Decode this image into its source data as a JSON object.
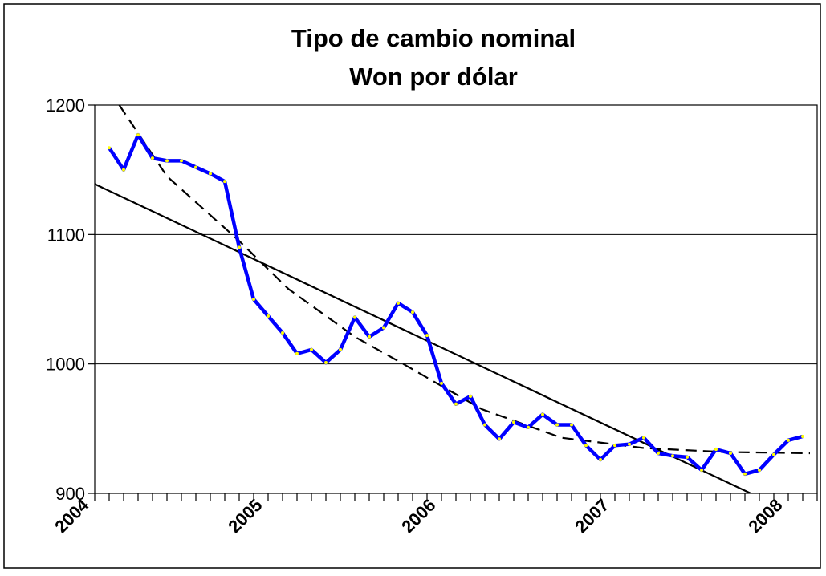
{
  "chart_data": {
    "type": "line",
    "title": [
      "Tipo de cambio nominal",
      "Won por dólar"
    ],
    "categories": [
      "2004",
      null,
      null,
      null,
      null,
      null,
      null,
      null,
      null,
      null,
      null,
      null,
      "2005",
      null,
      null,
      null,
      null,
      null,
      null,
      null,
      null,
      null,
      null,
      null,
      "2006",
      null,
      null,
      null,
      null,
      null,
      null,
      null,
      null,
      null,
      null,
      null,
      "2007",
      null,
      null,
      null,
      null,
      null,
      null,
      null,
      null,
      null,
      null,
      null,
      "2008",
      null,
      null
    ],
    "series": [
      {
        "color": "#0000ff",
        "marker_color": "#ffff00",
        "values": [
          null,
          1167,
          1150,
          1177,
          1159,
          1157,
          1157,
          1152,
          1147,
          1141,
          1090,
          1050,
          1037,
          1024,
          1008,
          1011,
          1001,
          1011,
          1036,
          1021,
          1028,
          1047,
          1040,
          1022,
          985,
          969,
          975,
          953,
          942,
          955,
          951,
          961,
          953,
          953,
          937,
          926,
          937,
          938,
          943,
          931,
          929,
          928,
          918,
          934,
          931,
          915,
          918,
          930,
          941,
          944,
          null
        ]
      }
    ],
    "trendlines": [
      {
        "style": "solid",
        "color": "#000000",
        "x": [
          0,
          45.4
        ],
        "values": [
          1139,
          900
        ]
      },
      {
        "style": "dashed",
        "color": "#000000",
        "x": [
          1.7,
          5,
          10,
          13.4,
          18,
          21.2,
          26.8,
          32.3,
          38,
          43.4,
          49.5
        ],
        "values": [
          1200,
          1145,
          1095,
          1058,
          1021,
          1001,
          965,
          943,
          935,
          932,
          931
        ]
      }
    ],
    "ylim": [
      900,
      1200
    ],
    "yticks": [
      900,
      1000,
      1100,
      1200
    ],
    "grid": true
  }
}
